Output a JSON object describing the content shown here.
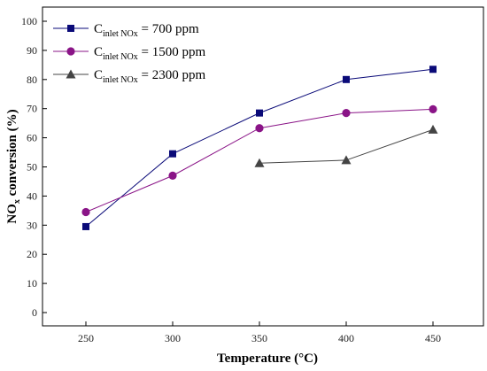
{
  "chart_data": {
    "type": "line",
    "xlabel": "Temperature (°C)",
    "ylabel_main": "NO",
    "ylabel_sub": "x",
    "ylabel_rest": " conversion (%)",
    "x": [
      250,
      300,
      350,
      400,
      450
    ],
    "x_ticks": [
      "250",
      "300",
      "350",
      "400",
      "450"
    ],
    "ylim": [
      0,
      100
    ],
    "y_ticks": [
      "0",
      "10",
      "20",
      "30",
      "40",
      "50",
      "60",
      "70",
      "80",
      "90",
      "100"
    ],
    "grid": false,
    "legend_placement": "top-left",
    "series": [
      {
        "name_main": "C",
        "name_sub": "inlet NOx",
        "name_rest": " = 700 ppm",
        "marker": "square",
        "color": "#0a0a78",
        "x": [
          250,
          300,
          350,
          400,
          450
        ],
        "values": [
          29.5,
          54.5,
          68.5,
          80,
          83.5
        ]
      },
      {
        "name_main": "C",
        "name_sub": "inlet NOx",
        "name_rest": " = 1500 ppm",
        "marker": "circle",
        "color": "#8a1487",
        "x": [
          250,
          300,
          350,
          400,
          450
        ],
        "values": [
          34.5,
          47,
          63.3,
          68.5,
          69.8
        ]
      },
      {
        "name_main": "C",
        "name_sub": "inlet NOx",
        "name_rest": " = 2300 ppm",
        "marker": "triangle",
        "color": "#444444",
        "x": [
          350,
          400,
          450
        ],
        "values": [
          51.3,
          52.3,
          62.8
        ]
      }
    ]
  }
}
